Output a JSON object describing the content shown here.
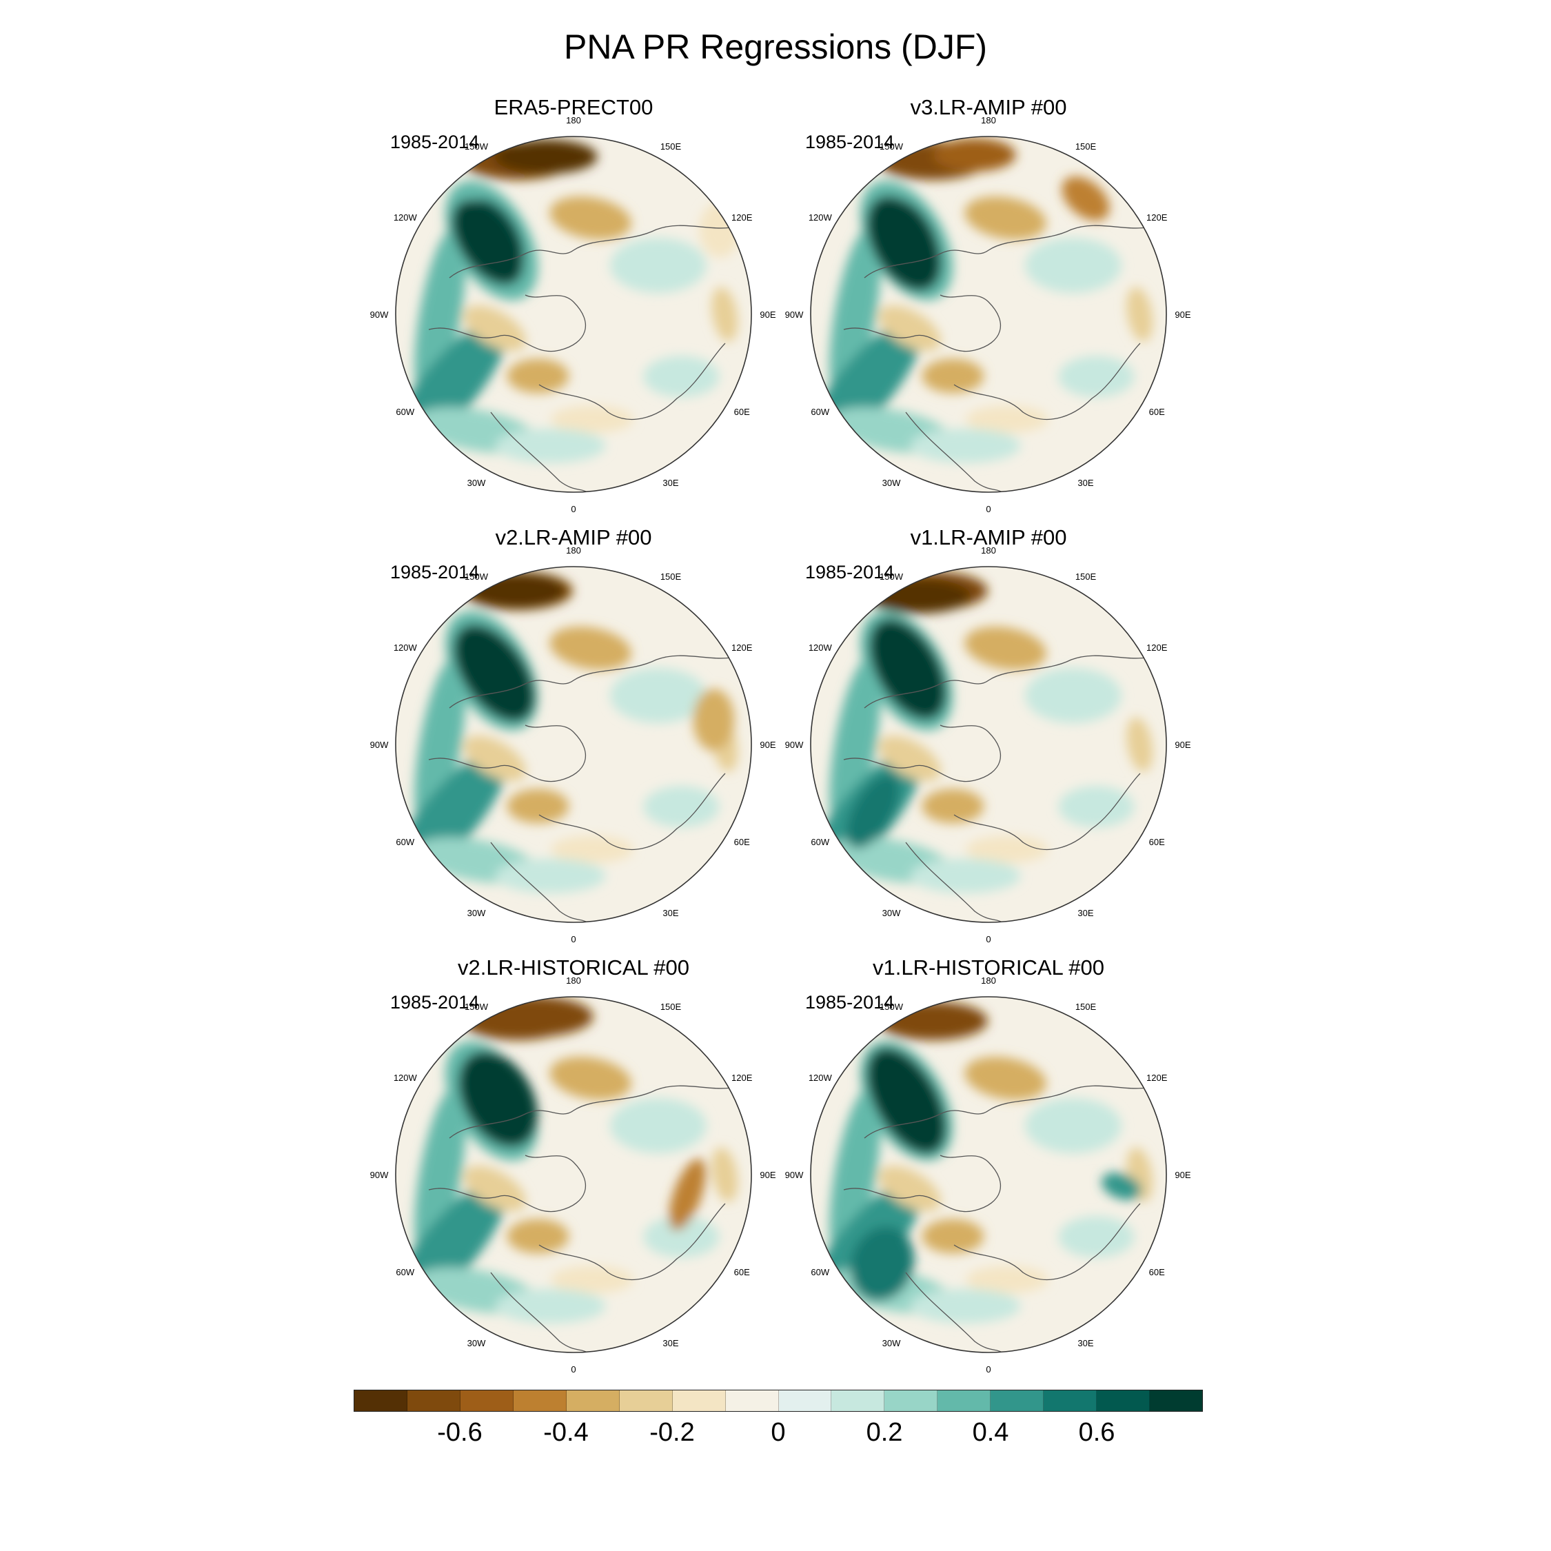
{
  "title": "PNA PR Regressions (DJF)",
  "period": "1985-2014",
  "lon_labels": [
    "180",
    "150E",
    "120E",
    "90E",
    "60E",
    "30E",
    "0",
    "30W",
    "60W",
    "90W",
    "120W",
    "150W"
  ],
  "panels": [
    {
      "title": "ERA5-PRECT00",
      "period": "1985-2014"
    },
    {
      "title": "v3.LR-AMIP  #00",
      "period": "1985-2014"
    },
    {
      "title": "v2.LR-AMIP  #00",
      "period": "1985-2014"
    },
    {
      "title": "v1.LR-AMIP  #00",
      "period": "1985-2014"
    },
    {
      "title": "v2.LR-HISTORICAL  #00",
      "period": "1985-2014"
    },
    {
      "title": "v1.LR-HISTORICAL  #00",
      "period": "1985-2014"
    }
  ],
  "colorbar": {
    "colors": [
      "#543005",
      "#7f4a0d",
      "#9e5e18",
      "#bd8030",
      "#d5ae62",
      "#e7cf97",
      "#f4e5c4",
      "#f5f1e6",
      "#e3f0ee",
      "#c7e8df",
      "#98d5c7",
      "#63b9aa",
      "#32968b",
      "#12776e",
      "#02594f",
      "#003c30"
    ],
    "tick_labels": [
      "-0.6",
      "-0.4",
      "-0.2",
      "0",
      "0.2",
      "0.4",
      "0.6"
    ],
    "tick_values": [
      -0.6,
      -0.4,
      -0.2,
      0,
      0.2,
      0.4,
      0.6
    ],
    "min": -0.8,
    "max": 0.8
  }
}
